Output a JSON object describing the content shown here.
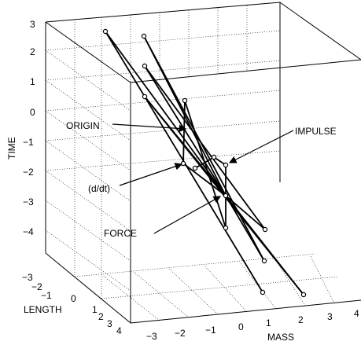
{
  "plot": {
    "axes": {
      "time_label": "TIME",
      "length_label": "LENGTH",
      "mass_label": "MASS",
      "time_ticks": [
        "3",
        "2",
        "1",
        "0",
        "−1",
        "−2",
        "−3",
        "−4"
      ],
      "length_ticks": [
        "−3",
        "−2",
        "−1",
        "0",
        "1",
        "2",
        "3",
        "4"
      ],
      "mass_ticks": [
        "−3",
        "−2",
        "−1",
        "0",
        "1",
        "2",
        "3",
        "4"
      ]
    },
    "annotations": {
      "origin": "ORIGIN",
      "impulse": "IMPULSE",
      "ddt": "(d/dt)",
      "force": "FORCE"
    },
    "grid": true
  }
}
